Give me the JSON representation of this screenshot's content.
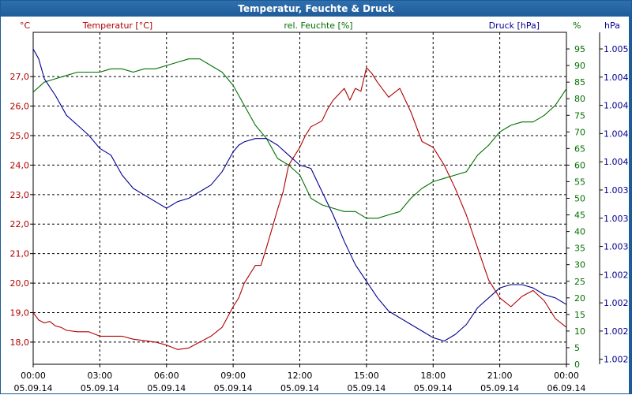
{
  "window": {
    "title": "Temperatur, Feuchte & Druck"
  },
  "chart_data": {
    "type": "line",
    "title": "Temperatur, Feuchte & Druck",
    "x_ticks": [
      {
        "time": "00:00",
        "date": "05.09.14"
      },
      {
        "time": "03:00",
        "date": "05.09.14"
      },
      {
        "time": "06:00",
        "date": "05.09.14"
      },
      {
        "time": "09:00",
        "date": "05.09.14"
      },
      {
        "time": "12:00",
        "date": "05.09.14"
      },
      {
        "time": "15:00",
        "date": "05.09.14"
      },
      {
        "time": "18:00",
        "date": "05.09.14"
      },
      {
        "time": "21:00",
        "date": "05.09.14"
      },
      {
        "time": "00:00",
        "date": "06.09.14"
      }
    ],
    "xlim": [
      0,
      24
    ],
    "grid": true,
    "axes": {
      "temperature": {
        "label": "Temperatur [°C]",
        "unit": "°C",
        "color": "#b00000",
        "side": "left",
        "ylim": [
          17.25,
          28.5
        ],
        "tick_values": [
          18,
          19,
          20,
          21,
          22,
          23,
          24,
          25,
          26,
          27
        ],
        "tick_labels": [
          "18,0",
          "19,0",
          "20,0",
          "21,0",
          "22,0",
          "23,0",
          "24,0",
          "25,0",
          "26,0",
          "27,0"
        ]
      },
      "humidity": {
        "label": "rel. Feuchte [%]",
        "unit": "%",
        "color": "#007000",
        "side": "right",
        "ylim": [
          0,
          100
        ],
        "tick_values": [
          0,
          5,
          10,
          15,
          20,
          25,
          30,
          35,
          40,
          45,
          50,
          55,
          60,
          65,
          70,
          75,
          80,
          85,
          90,
          95
        ],
        "tick_labels": [
          "0",
          "5",
          "10",
          "15",
          "20",
          "25",
          "30",
          "35",
          "40",
          "45",
          "50",
          "55",
          "60",
          "65",
          "70",
          "75",
          "80",
          "85",
          "90",
          "95"
        ]
      },
      "pressure": {
        "label": "Druck [hPa]",
        "unit": "hPa",
        "color": "#000090",
        "side": "right-outer",
        "ylim": [
          0,
          100
        ],
        "tick_values": [
          1.5,
          10,
          18.5,
          27,
          35.5,
          44,
          52.5,
          61,
          69.5,
          78,
          86.5,
          95
        ],
        "tick_labels": [
          "1.002",
          "1.002",
          "1.002",
          "1.002",
          "1.003",
          "1.003",
          "1.003",
          "1.004",
          "1.004",
          "1.004",
          "1.004",
          "1.005"
        ]
      }
    },
    "series": [
      {
        "name": "Temperatur [°C]",
        "axis": "temperature",
        "color": "#b00000",
        "x": [
          0,
          0.25,
          0.5,
          0.75,
          1,
          1.25,
          1.5,
          2,
          2.5,
          3,
          3.5,
          4,
          4.5,
          5,
          5.5,
          6,
          6.5,
          7,
          7.5,
          8,
          8.5,
          9,
          9.25,
          9.5,
          10,
          10.25,
          10.5,
          11,
          11.25,
          11.5,
          12,
          12.25,
          12.5,
          13,
          13.25,
          13.5,
          13.75,
          14,
          14.25,
          14.5,
          14.75,
          15,
          15.25,
          15.5,
          16,
          16.5,
          17,
          17.5,
          18,
          18.5,
          19,
          19.5,
          20,
          20.5,
          21,
          21.5,
          22,
          22.5,
          23,
          23.5,
          24
        ],
        "y": [
          19.0,
          18.75,
          18.65,
          18.7,
          18.55,
          18.5,
          18.4,
          18.35,
          18.35,
          18.2,
          18.2,
          18.2,
          18.1,
          18.05,
          18.0,
          17.9,
          17.75,
          17.8,
          18.0,
          18.2,
          18.5,
          19.2,
          19.5,
          20.0,
          20.6,
          20.6,
          21.2,
          22.5,
          23.1,
          24.0,
          24.6,
          25.0,
          25.3,
          25.5,
          25.9,
          26.2,
          26.4,
          26.6,
          26.2,
          26.6,
          26.5,
          27.3,
          27.1,
          26.8,
          26.3,
          26.6,
          25.8,
          24.8,
          24.6,
          24.0,
          23.2,
          22.3,
          21.2,
          20.1,
          19.5,
          19.2,
          19.55,
          19.75,
          19.4,
          18.8,
          18.5
        ]
      },
      {
        "name": "rel. Feuchte [%]",
        "axis": "humidity",
        "color": "#007000",
        "x": [
          0,
          0.5,
          1,
          1.5,
          2,
          2.5,
          3,
          3.5,
          4,
          4.5,
          5,
          5.5,
          6,
          6.5,
          7,
          7.5,
          8,
          8.5,
          9,
          9.5,
          10,
          10.5,
          11,
          11.5,
          12,
          12.5,
          13,
          13.5,
          14,
          14.5,
          15,
          15.5,
          16,
          16.5,
          17,
          17.5,
          18,
          18.5,
          19,
          19.5,
          20,
          20.5,
          21,
          21.5,
          22,
          22.5,
          23,
          23.5,
          24
        ],
        "y": [
          82,
          85,
          86,
          87,
          88,
          88,
          88,
          89,
          89,
          88,
          89,
          89,
          90,
          91,
          92,
          92,
          90,
          88,
          84,
          78,
          72,
          68,
          62,
          60,
          57,
          50,
          48,
          47,
          46,
          46,
          44,
          44,
          45,
          46,
          50,
          53,
          55,
          56,
          57,
          58,
          63,
          66,
          70,
          72,
          73,
          73,
          75,
          78,
          83
        ]
      },
      {
        "name": "Druck [hPa]",
        "axis": "pressure",
        "color": "#000090",
        "x": [
          0,
          0.25,
          0.5,
          1,
          1.5,
          2,
          2.5,
          3,
          3.5,
          4,
          4.5,
          5,
          5.5,
          6,
          6.5,
          7,
          7.5,
          8,
          8.5,
          9,
          9.25,
          9.5,
          10,
          10.5,
          11,
          11.5,
          12,
          12.5,
          13,
          13.5,
          14,
          14.5,
          15,
          15.5,
          16,
          16.5,
          17,
          17.5,
          18,
          18.5,
          19,
          19.5,
          20,
          20.5,
          21,
          21.5,
          22,
          22.5,
          23,
          23.5,
          24
        ],
        "y": [
          95,
          92,
          86,
          81,
          75,
          72,
          69,
          65,
          63,
          57,
          53,
          51,
          49,
          47,
          49,
          50,
          52,
          54,
          58,
          64,
          66,
          67,
          68,
          68,
          66,
          63,
          60,
          59,
          52,
          45,
          37,
          30,
          25,
          20,
          16,
          14,
          12,
          10,
          8,
          7,
          9,
          12,
          17,
          20,
          23,
          24,
          24,
          23,
          21,
          20,
          18
        ]
      }
    ]
  }
}
